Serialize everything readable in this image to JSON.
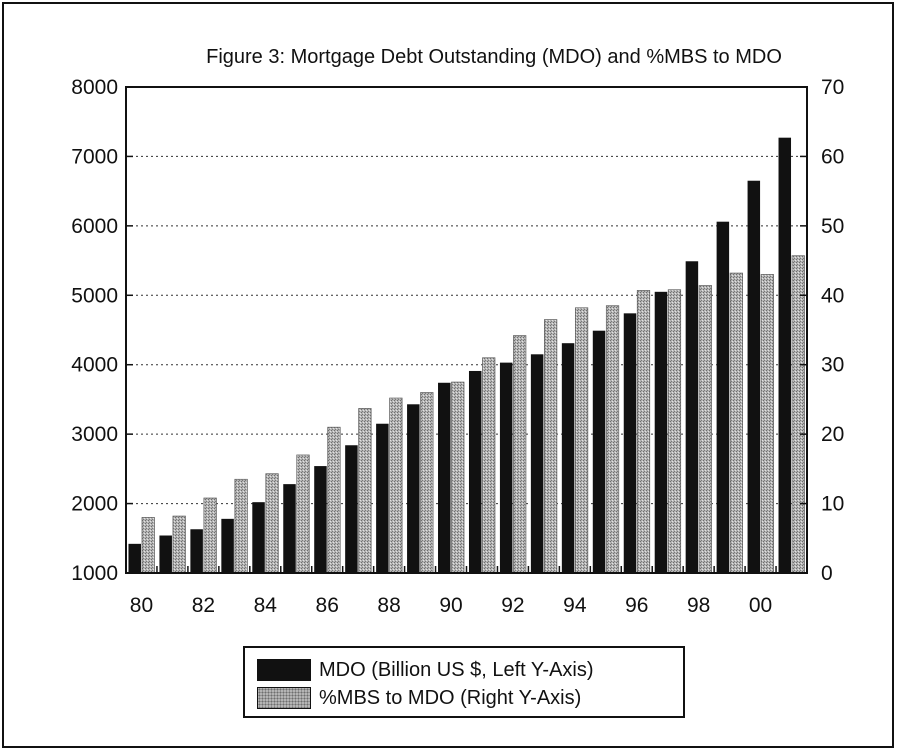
{
  "chart_data": {
    "type": "bar",
    "title": "Figure 3: Mortgage Debt Outstanding (MDO) and %MBS to MDO",
    "xlabel": "",
    "x": [
      1980,
      1981,
      1982,
      1983,
      1984,
      1985,
      1986,
      1987,
      1988,
      1989,
      1990,
      1991,
      1992,
      1993,
      1994,
      1995,
      1996,
      1997,
      1998,
      1999,
      2000,
      2001
    ],
    "x_tick_labels": [
      "80",
      "82",
      "84",
      "86",
      "88",
      "90",
      "92",
      "94",
      "96",
      "98",
      "00"
    ],
    "x_tick_years": [
      1980,
      1982,
      1984,
      1986,
      1988,
      1990,
      1992,
      1994,
      1996,
      1998,
      2000
    ],
    "y_left": {
      "label": "",
      "lim": [
        1000,
        8000
      ],
      "ticks": [
        1000,
        2000,
        3000,
        4000,
        5000,
        6000,
        7000,
        8000
      ]
    },
    "y_right": {
      "label": "",
      "lim": [
        0,
        70
      ],
      "ticks": [
        0,
        10,
        20,
        30,
        40,
        50,
        60,
        70
      ]
    },
    "grid": "horizontal dotted",
    "legend": "bottom",
    "series": [
      {
        "name": "MDO (Billion US $, Left Y-Axis)",
        "axis": "left",
        "color": "#111111",
        "values": [
          1420,
          1540,
          1630,
          1780,
          2020,
          2280,
          2540,
          2840,
          3150,
          3430,
          3740,
          3910,
          4030,
          4150,
          4310,
          4490,
          4740,
          5050,
          5490,
          6060,
          6650,
          7270
        ]
      },
      {
        "name": "%MBS to MDO (Right Y-Axis)",
        "axis": "right",
        "color": "#a8a8a8",
        "values": [
          8.0,
          8.2,
          10.8,
          13.5,
          14.3,
          17.0,
          21.0,
          23.7,
          25.2,
          26.0,
          27.5,
          31.0,
          34.2,
          36.5,
          38.2,
          38.5,
          40.7,
          40.8,
          41.4,
          43.2,
          43.0,
          45.7
        ]
      }
    ]
  }
}
